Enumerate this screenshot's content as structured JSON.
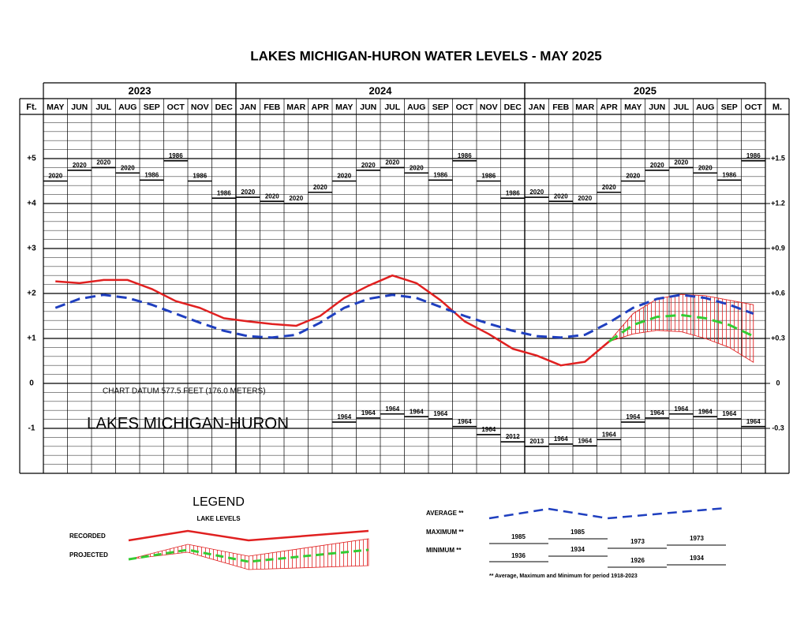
{
  "chart_data": {
    "type": "line",
    "title": "LAKES MICHIGAN-HURON WATER LEVELS - MAY 2025",
    "y_label": "Ft.",
    "y2_label": "M.",
    "datum_note": "CHART DATUM  577.5 FEET (176.0 METERS)",
    "lake_name": "LAKES MICHIGAN-HURON",
    "categories": [
      "MAY",
      "JUN",
      "JUL",
      "AUG",
      "SEP",
      "OCT",
      "NOV",
      "DEC",
      "JAN",
      "FEB",
      "MAR",
      "APR",
      "MAY",
      "JUN",
      "JUL",
      "AUG",
      "SEP",
      "OCT",
      "NOV",
      "DEC",
      "JAN",
      "FEB",
      "MAR",
      "APR",
      "MAY",
      "JUN",
      "JUL",
      "AUG",
      "SEP",
      "OCT"
    ],
    "category_years": [
      "2023",
      "2023",
      "2023",
      "2023",
      "2023",
      "2023",
      "2023",
      "2023",
      "2024",
      "2024",
      "2024",
      "2024",
      "2024",
      "2024",
      "2024",
      "2024",
      "2024",
      "2024",
      "2024",
      "2024",
      "2025",
      "2025",
      "2025",
      "2025",
      "2025",
      "2025",
      "2025",
      "2025",
      "2025",
      "2025"
    ],
    "ylim": [
      -2,
      6
    ],
    "yticks": [
      {
        "value": -1,
        "label": "-1"
      },
      0,
      {
        "value": 1,
        "label": "+1"
      },
      {
        "value": 2,
        "label": "+2"
      },
      {
        "value": 3,
        "label": "+3"
      },
      {
        "value": 4,
        "label": "+4"
      },
      {
        "value": 5,
        "label": "+5"
      }
    ],
    "minor_yticks": [
      -1.8,
      -1.6,
      -1.4,
      -1.2,
      -0.8,
      -0.6,
      -0.4,
      -0.2,
      0.2,
      0.4,
      0.6,
      0.8,
      1.2,
      1.4,
      1.6,
      1.8,
      2.2,
      2.4,
      2.6,
      2.8,
      3.2,
      3.4,
      3.6,
      3.8,
      4.2,
      4.4,
      4.6,
      4.8,
      5.2,
      5.4,
      5.6,
      5.8
    ],
    "y2lim": [
      -0.6096,
      1.8288
    ],
    "y2ticks": [
      {
        "value": -0.3048,
        "label": "-0.3"
      },
      0,
      {
        "value": 0.3048,
        "label": "+0.3"
      },
      {
        "value": 0.6096,
        "label": "+0.6"
      },
      {
        "value": 0.9144,
        "label": "+0.9"
      },
      {
        "value": 1.2192,
        "label": "+1.2"
      },
      {
        "value": 1.524,
        "label": "+1.5"
      }
    ],
    "grid": true,
    "series": [
      {
        "name": "RECORDED",
        "color": "#e02020",
        "style": "solid",
        "values": [
          2.27,
          2.23,
          2.3,
          2.3,
          2.1,
          1.83,
          1.68,
          1.45,
          1.38,
          1.32,
          1.28,
          1.5,
          1.9,
          2.17,
          2.4,
          2.23,
          1.85,
          1.38,
          1.1,
          0.77,
          0.62,
          0.4,
          0.48,
          0.93,
          null,
          null,
          null,
          null,
          null,
          null
        ]
      },
      {
        "name": "AVERAGE **",
        "color": "#1f3fbf",
        "style": "dashed",
        "values": [
          1.68,
          1.88,
          1.97,
          1.9,
          1.75,
          1.55,
          1.35,
          1.17,
          1.05,
          1.02,
          1.08,
          1.35,
          1.68,
          1.88,
          1.97,
          1.9,
          1.7,
          1.5,
          1.33,
          1.17,
          1.05,
          1.02,
          1.08,
          1.35,
          1.68,
          1.88,
          1.97,
          1.9,
          1.75,
          1.55
        ]
      },
      {
        "name": "PROJECTED",
        "color": "#33cc33",
        "style": "dashed",
        "values": [
          null,
          null,
          null,
          null,
          null,
          null,
          null,
          null,
          null,
          null,
          null,
          null,
          null,
          null,
          null,
          null,
          null,
          null,
          null,
          null,
          null,
          null,
          null,
          0.93,
          1.3,
          1.48,
          1.52,
          1.45,
          1.3,
          1.05
        ]
      }
    ],
    "projected_range": {
      "color": "#e02020",
      "upper": [
        null,
        null,
        null,
        null,
        null,
        null,
        null,
        null,
        null,
        null,
        null,
        null,
        null,
        null,
        null,
        null,
        null,
        null,
        null,
        null,
        null,
        null,
        null,
        0.93,
        1.55,
        1.88,
        1.98,
        1.95,
        1.85,
        1.75
      ],
      "lower": [
        null,
        null,
        null,
        null,
        null,
        null,
        null,
        null,
        null,
        null,
        null,
        null,
        null,
        null,
        null,
        null,
        null,
        null,
        null,
        null,
        null,
        null,
        null,
        0.93,
        1.1,
        1.18,
        1.15,
        1.0,
        0.8,
        0.47
      ]
    },
    "max_values": [
      4.5,
      4.74,
      4.8,
      4.68,
      4.52,
      4.95,
      4.5,
      4.12,
      4.14,
      4.05,
      4.0,
      4.25,
      4.5,
      4.74,
      4.8,
      4.68,
      4.52,
      4.95,
      4.5,
      4.12,
      4.14,
      4.05,
      4.0,
      4.25,
      4.5,
      4.74,
      4.8,
      4.68,
      4.52,
      4.95
    ],
    "max_years": [
      "2020",
      "2020",
      "2020",
      "2020",
      "1986",
      "1986",
      "1986",
      "1986",
      "2020",
      "2020",
      "2020",
      "2020",
      "2020",
      "2020",
      "2020",
      "2020",
      "1986",
      "1986",
      "1986",
      "1986",
      "2020",
      "2020",
      "2020",
      "2020",
      "2020",
      "2020",
      "2020",
      "2020",
      "1986",
      "1986"
    ],
    "min_values": [
      null,
      null,
      null,
      null,
      null,
      null,
      null,
      null,
      null,
      null,
      null,
      null,
      -0.86,
      -0.77,
      -0.68,
      -0.74,
      -0.79,
      -0.96,
      -1.14,
      -1.3,
      -1.4,
      -1.35,
      -1.39,
      -1.25,
      -0.86,
      -0.77,
      -0.68,
      -0.74,
      -0.79,
      -0.96
    ],
    "min_years": [
      null,
      null,
      null,
      null,
      null,
      null,
      null,
      null,
      null,
      null,
      null,
      null,
      "1964",
      "1964",
      "1964",
      "1964",
      "1964",
      "1964",
      "1964",
      "2012",
      "2013",
      "1964",
      "1964",
      "1964",
      "1964",
      "1964",
      "1964",
      "1964",
      "1964",
      "1964"
    ],
    "legend": {
      "title": "LEGEND",
      "subtitle": "LAKE LEVELS",
      "max_label": "MAXIMUM **",
      "min_label": "MINIMUM **",
      "max_years": [
        "1985",
        "1985",
        "1973",
        "1973"
      ],
      "min_years": [
        "1936",
        "1934",
        "1926",
        "1934"
      ],
      "footnote": "** Average, Maximum and Minimum for period 1918-2023"
    }
  }
}
